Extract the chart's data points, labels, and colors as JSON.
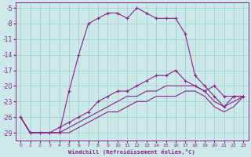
{
  "xlabel": "Windchill (Refroidissement éolien,°C)",
  "background_color": "#cce8e8",
  "grid_color": "#99cccc",
  "line_color": "#882288",
  "xlim": [
    -0.5,
    23.5
  ],
  "ylim": [
    -30.5,
    -4.0
  ],
  "yticks": [
    -29,
    -26,
    -23,
    -20,
    -17,
    -14,
    -11,
    -8,
    -5
  ],
  "xticks": [
    0,
    1,
    2,
    3,
    4,
    5,
    6,
    7,
    8,
    9,
    10,
    11,
    12,
    13,
    14,
    15,
    16,
    17,
    18,
    19,
    20,
    21,
    22,
    23
  ],
  "line1_x": [
    0,
    1,
    2,
    3,
    4,
    5,
    6,
    7,
    8,
    9,
    10,
    11,
    12,
    13,
    14,
    15,
    16,
    17,
    18,
    19,
    20,
    21,
    22,
    23
  ],
  "line1_y": [
    -26,
    -29,
    -29,
    -29,
    -29,
    -21,
    -14,
    -8,
    -7,
    -6,
    -6,
    -7,
    -5,
    -6,
    -7,
    -7,
    -7,
    -10,
    -18,
    -20,
    -22,
    -24,
    -22,
    -22
  ],
  "line2_x": [
    0,
    1,
    2,
    3,
    4,
    5,
    6,
    7,
    8,
    9,
    10,
    11,
    12,
    13,
    14,
    15,
    16,
    17,
    18,
    19,
    20,
    21,
    22,
    23
  ],
  "line2_y": [
    -26,
    -29,
    -29,
    -29,
    -28,
    -27,
    -26,
    -25,
    -23,
    -22,
    -21,
    -21,
    -20,
    -19,
    -18,
    -18,
    -17,
    -19,
    -20,
    -21,
    -20,
    -22,
    -22,
    -22
  ],
  "line3_x": [
    0,
    1,
    2,
    3,
    4,
    5,
    6,
    7,
    8,
    9,
    10,
    11,
    12,
    13,
    14,
    15,
    16,
    17,
    18,
    19,
    20,
    21,
    22,
    23
  ],
  "line3_y": [
    -26,
    -29,
    -29,
    -29,
    -29,
    -28,
    -27,
    -26,
    -25,
    -24,
    -23,
    -22,
    -22,
    -21,
    -21,
    -20,
    -20,
    -20,
    -20,
    -21,
    -23,
    -24,
    -23,
    -22
  ],
  "line4_x": [
    0,
    1,
    2,
    3,
    4,
    5,
    6,
    7,
    8,
    9,
    10,
    11,
    12,
    13,
    14,
    15,
    16,
    17,
    18,
    19,
    20,
    21,
    22,
    23
  ],
  "line4_y": [
    -26,
    -29,
    -29,
    -29,
    -29,
    -29,
    -28,
    -27,
    -26,
    -25,
    -25,
    -24,
    -23,
    -23,
    -22,
    -22,
    -22,
    -21,
    -21,
    -22,
    -24,
    -25,
    -24,
    -22
  ]
}
